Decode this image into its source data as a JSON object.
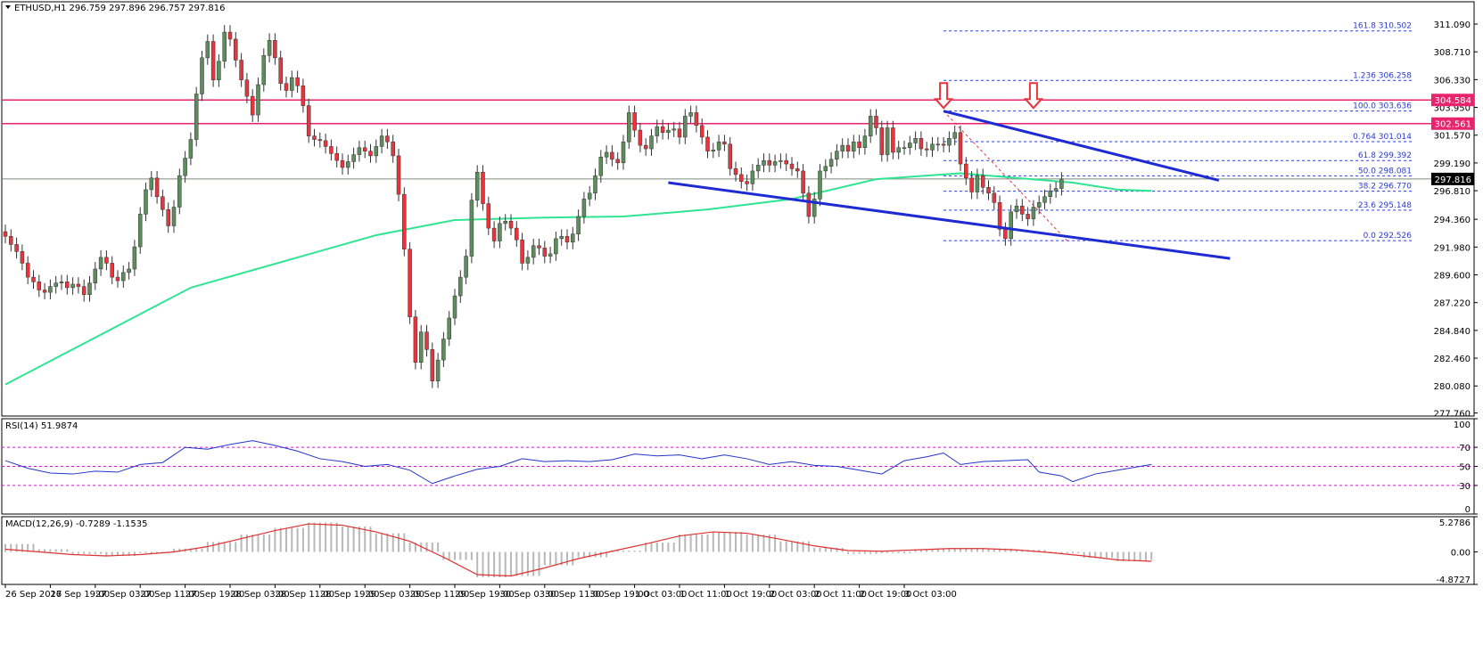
{
  "colors": {
    "background": "#ffffff",
    "frame": "#000000",
    "grid": "#c0c0c0",
    "bull_candle": "#5d8d5d",
    "bear_candle": "#e8343c",
    "moving_average": "#2fe592",
    "resistance_line": "#e8246e",
    "trend_line": "#1f2bd2",
    "fib_line": "#2a3bd0",
    "fib_text": "#2a3bd0",
    "arrow": "#e8343c",
    "rsi_line": "#2233cc",
    "rsi_levels": "#c020c0",
    "macd_hist": "#b8b8b8",
    "macd_signal": "#e03030",
    "price_tag_text": "#ffffff",
    "current_price_tag": "#000000"
  },
  "header": {
    "symbol_line": "ETHUSD,H1  296.759 297.896 296.757 297.816"
  },
  "chart_data": [
    {
      "type": "candlestick",
      "title": "ETHUSD,H1  296.759 297.896 296.757 297.816",
      "ylim": [
        277.5,
        313.0
      ],
      "yticks": [
        "311.090",
        "308.710",
        "306.330",
        "303.950",
        "301.570",
        "299.190",
        "296.810",
        "294.360",
        "291.980",
        "289.600",
        "287.220",
        "284.840",
        "282.460",
        "280.080",
        "277.760"
      ],
      "ytick_values": [
        311.09,
        308.71,
        306.33,
        303.95,
        301.57,
        299.19,
        296.81,
        294.36,
        291.98,
        289.6,
        287.22,
        284.84,
        282.46,
        280.08,
        277.76
      ],
      "xticks": [
        "26 Sep 2017",
        "26 Sep 19:00",
        "27 Sep 03:00",
        "27 Sep 11:00",
        "27 Sep 19:00",
        "28 Sep 03:00",
        "28 Sep 11:00",
        "28 Sep 19:00",
        "29 Sep 03:00",
        "29 Sep 11:00",
        "29 Sep 19:00",
        "30 Sep 03:00",
        "30 Sep 11:00",
        "30 Sep 19:00",
        "1 Oct 03:00",
        "1 Oct 11:00",
        "1 Oct 19:00",
        "2 Oct 03:00",
        "2 Oct 11:00",
        "2 Oct 19:00",
        "3 Oct 03:00"
      ],
      "close": [
        292.9,
        292.2,
        291.6,
        290.6,
        289.4,
        289.0,
        288.3,
        288.1,
        288.6,
        288.9,
        289.0,
        288.5,
        288.8,
        288.6,
        287.9,
        288.9,
        290.1,
        291.1,
        290.6,
        289.4,
        289.1,
        289.8,
        290.1,
        292.0,
        294.8,
        296.9,
        297.9,
        296.3,
        295.2,
        293.8,
        295.4,
        298.1,
        299.6,
        301.2,
        305.1,
        308.2,
        309.6,
        306.3,
        307.9,
        310.4,
        309.8,
        308.0,
        306.3,
        304.9,
        303.3,
        305.9,
        308.4,
        309.7,
        308.2,
        306.0,
        305.4,
        306.5,
        305.8,
        304.1,
        301.5,
        301.2,
        301.1,
        300.6,
        300.0,
        299.4,
        298.8,
        299.3,
        299.9,
        300.5,
        300.2,
        299.8,
        300.6,
        301.5,
        301.0,
        299.8,
        296.5,
        291.8,
        286.0,
        282.1,
        284.7,
        283.2,
        280.5,
        282.3,
        284.1,
        285.9,
        287.8,
        289.4,
        291.2,
        296.0,
        298.4,
        295.7,
        293.6,
        292.5,
        294.0,
        294.2,
        293.6,
        292.6,
        290.6,
        291.1,
        292.1,
        291.9,
        291.2,
        291.4,
        292.7,
        292.9,
        292.4,
        293.1,
        294.6,
        296.1,
        296.6,
        298.1,
        299.7,
        300.1,
        299.5,
        299.2,
        301.0,
        303.5,
        302.0,
        300.7,
        300.4,
        301.5,
        302.3,
        301.8,
        302.0,
        302.1,
        301.4,
        303.2,
        303.5,
        302.4,
        301.4,
        300.2,
        300.3,
        301.0,
        300.8,
        298.7,
        298.2,
        297.6,
        297.4,
        298.5,
        299.0,
        299.4,
        299.0,
        299.3,
        299.4,
        299.1,
        298.7,
        298.5,
        296.6,
        294.6,
        296.1,
        298.5,
        298.9,
        299.5,
        300.2,
        300.7,
        300.2,
        301.0,
        300.5,
        301.5,
        303.2,
        302.2,
        299.9,
        302.2,
        300.1,
        300.5,
        300.5,
        300.9,
        301.3,
        300.4,
        300.3,
        300.8,
        300.8,
        300.7,
        301.3,
        301.8,
        299.1,
        297.9,
        296.7,
        298.1,
        297.1,
        296.6,
        295.8,
        293.5,
        292.7,
        295.0,
        295.5,
        294.8,
        294.4,
        295.4,
        295.8,
        296.3,
        296.8,
        297.0,
        297.8
      ],
      "moving_average_values": [
        280.2,
        288.5,
        293.0,
        294.3,
        294.5,
        294.6,
        295.2,
        296.1,
        297.8,
        298.3,
        297.9,
        297.5,
        296.9,
        296.8
      ],
      "moving_average_x_index": [
        0,
        33,
        66,
        80,
        95,
        110,
        125,
        140,
        155,
        170,
        180,
        190,
        198,
        204
      ],
      "horizontal_levels": [
        {
          "label": "304.584",
          "value": 304.584,
          "style": "resistance"
        },
        {
          "label": "302.561",
          "value": 302.561,
          "style": "resistance"
        },
        {
          "label": "297.816",
          "value": 297.816,
          "style": "current"
        }
      ],
      "fib_levels": [
        {
          "ratio": "161.8",
          "price": "310.502",
          "value": 310.502
        },
        {
          "ratio": "1.236",
          "price": "306.258",
          "value": 306.258
        },
        {
          "ratio": "100.0",
          "price": "303.636",
          "value": 303.636
        },
        {
          "ratio": "0.764",
          "price": "301.014",
          "value": 301.014
        },
        {
          "ratio": "61.8",
          "price": "299.392",
          "value": 299.392
        },
        {
          "ratio": "50.0",
          "price": "298.081",
          "value": 298.081
        },
        {
          "ratio": "38.2",
          "price": "296.770",
          "value": 296.77
        },
        {
          "ratio": "23.6",
          "price": "295.148",
          "value": 295.148
        },
        {
          "ratio": "0.0",
          "price": "292.526",
          "value": 292.526
        }
      ],
      "trend_lines": [
        {
          "name": "upper",
          "x_index": [
            167,
            216
          ],
          "values": [
            303.636,
            297.7
          ]
        },
        {
          "name": "lower",
          "x_index": [
            118,
            218
          ],
          "values": [
            297.5,
            291.0
          ]
        }
      ],
      "fib_diagonal": {
        "x_index": [
          167,
          189
        ],
        "values": [
          303.636,
          292.526
        ]
      },
      "arrows_x_index": [
        167,
        183
      ]
    },
    {
      "type": "line",
      "title": "RSI(14) 51.9874",
      "ylim": [
        0,
        100
      ],
      "yticks": [
        "100",
        "70",
        "50",
        "30",
        "0"
      ],
      "ytick_values": [
        100,
        70,
        50,
        30,
        0
      ],
      "levels": [
        70,
        50,
        30
      ],
      "x_index": [
        0,
        4,
        8,
        12,
        16,
        20,
        24,
        28,
        32,
        36,
        40,
        44,
        48,
        52,
        56,
        60,
        64,
        68,
        72,
        76,
        80,
        84,
        88,
        92,
        96,
        100,
        104,
        108,
        112,
        116,
        120,
        124,
        128,
        132,
        136,
        140,
        144,
        148,
        152,
        156,
        160,
        164,
        167,
        170,
        174,
        178,
        182,
        184,
        188,
        190,
        194,
        198,
        202,
        204
      ],
      "values": [
        56,
        48,
        43,
        42,
        45,
        44,
        52,
        54,
        70,
        68,
        73,
        77,
        72,
        66,
        58,
        55,
        50,
        52,
        46,
        32,
        40,
        47,
        50,
        58,
        55,
        56,
        55,
        57,
        63,
        61,
        62,
        58,
        62,
        58,
        52,
        55,
        51,
        50,
        46,
        42,
        56,
        60,
        64,
        52,
        55,
        56,
        57,
        44,
        40,
        34,
        42,
        46,
        50,
        52
      ]
    },
    {
      "type": "bar",
      "title": "MACD(12,26,9) -0.7289 -1.1535",
      "ylim": [
        -4.8727,
        5.2786
      ],
      "yticks": [
        "5.2786",
        "0.00",
        "-4.8727"
      ],
      "ytick_values": [
        5.2786,
        0.0,
        -4.8727
      ],
      "x_index": [
        0,
        6,
        12,
        18,
        24,
        30,
        36,
        42,
        48,
        54,
        60,
        66,
        72,
        78,
        84,
        90,
        96,
        102,
        108,
        114,
        120,
        126,
        132,
        138,
        144,
        150,
        156,
        162,
        168,
        174,
        180,
        186,
        192,
        198,
        204
      ],
      "histogram": [
        1.2,
        0.4,
        -0.3,
        -0.6,
        -0.2,
        0.5,
        1.5,
        2.6,
        3.6,
        4.4,
        3.8,
        2.8,
        1.4,
        -1.2,
        -3.8,
        -3.6,
        -2.0,
        -0.8,
        0.2,
        1.4,
        2.6,
        3.0,
        2.6,
        1.6,
        0.6,
        -0.3,
        -0.2,
        0.4,
        0.6,
        0.5,
        0.3,
        -0.2,
        -0.9,
        -1.4,
        -1.2
      ],
      "signal": [
        0.4,
        0.0,
        -0.4,
        -0.6,
        -0.4,
        0.0,
        0.8,
        2.0,
        3.2,
        4.2,
        4.0,
        3.0,
        1.6,
        -0.8,
        -3.4,
        -3.6,
        -2.4,
        -1.0,
        0.1,
        1.2,
        2.4,
        3.0,
        2.8,
        1.9,
        0.9,
        0.2,
        0.1,
        0.3,
        0.5,
        0.5,
        0.3,
        -0.1,
        -0.6,
        -1.2,
        -1.4
      ]
    }
  ]
}
